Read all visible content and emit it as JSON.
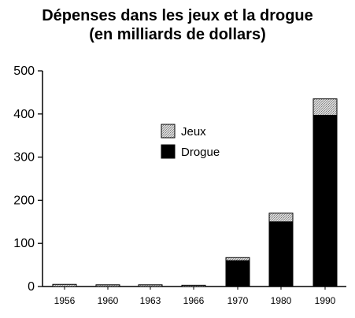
{
  "chart_data": {
    "type": "bar",
    "stacked": true,
    "title": "Dépenses dans les jeux et la drogue",
    "subtitle": "(en milliards de dollars)",
    "xlabel": "",
    "ylabel": "",
    "categories": [
      "1956",
      "1960",
      "1963",
      "1966",
      "1970",
      "1980",
      "1990"
    ],
    "series": [
      {
        "name": "Drogue",
        "values": [
          0,
          0,
          0,
          0,
          60,
          150,
          397
        ],
        "color": "#000000"
      },
      {
        "name": "Jeux",
        "values": [
          5,
          4,
          4,
          3,
          7,
          20,
          38
        ],
        "color": "#c8c8c8"
      }
    ],
    "yticks": [
      0,
      100,
      200,
      300,
      400,
      500
    ],
    "ylim": [
      0,
      500
    ],
    "grid": false,
    "legend_position": "center"
  }
}
